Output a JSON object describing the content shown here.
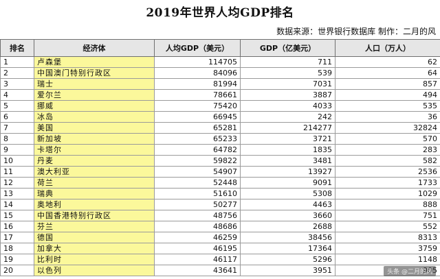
{
  "title": "2019年世界人均GDP排名",
  "subtitle": "数据来源：世界银行数据库   制作：二月的风",
  "table": {
    "headers": [
      "排名",
      "经济体",
      "人均GDP（美元）",
      "GDP（亿美元）",
      "人口（万人）"
    ],
    "rows": [
      [
        "1",
        "卢森堡",
        "114705",
        "711",
        "62"
      ],
      [
        "2",
        "中国澳门特别行政区",
        "84096",
        "539",
        "64"
      ],
      [
        "3",
        "瑞士",
        "81994",
        "7031",
        "857"
      ],
      [
        "4",
        "爱尔兰",
        "78661",
        "3887",
        "494"
      ],
      [
        "5",
        "挪威",
        "75420",
        "4033",
        "535"
      ],
      [
        "6",
        "冰岛",
        "66945",
        "242",
        "36"
      ],
      [
        "7",
        "美国",
        "65281",
        "214277",
        "32824"
      ],
      [
        "8",
        "新加坡",
        "65233",
        "3721",
        "570"
      ],
      [
        "9",
        "卡塔尔",
        "64782",
        "1835",
        "283"
      ],
      [
        "10",
        "丹麦",
        "59822",
        "3481",
        "582"
      ],
      [
        "11",
        "澳大利亚",
        "54907",
        "13927",
        "2536"
      ],
      [
        "12",
        "荷兰",
        "52448",
        "9091",
        "1733"
      ],
      [
        "13",
        "瑞典",
        "51610",
        "5308",
        "1029"
      ],
      [
        "14",
        "奥地利",
        "50277",
        "4463",
        "888"
      ],
      [
        "15",
        "中国香港特别行政区",
        "48756",
        "3660",
        "751"
      ],
      [
        "16",
        "芬兰",
        "48686",
        "2688",
        "552"
      ],
      [
        "17",
        "德国",
        "46259",
        "38456",
        "8313"
      ],
      [
        "18",
        "加拿大",
        "46195",
        "17364",
        "3759"
      ],
      [
        "19",
        "比利时",
        "46117",
        "5296",
        "1148"
      ],
      [
        "20",
        "以色列",
        "43641",
        "3951",
        "905"
      ]
    ]
  },
  "watermark": "头条 @二月的风"
}
